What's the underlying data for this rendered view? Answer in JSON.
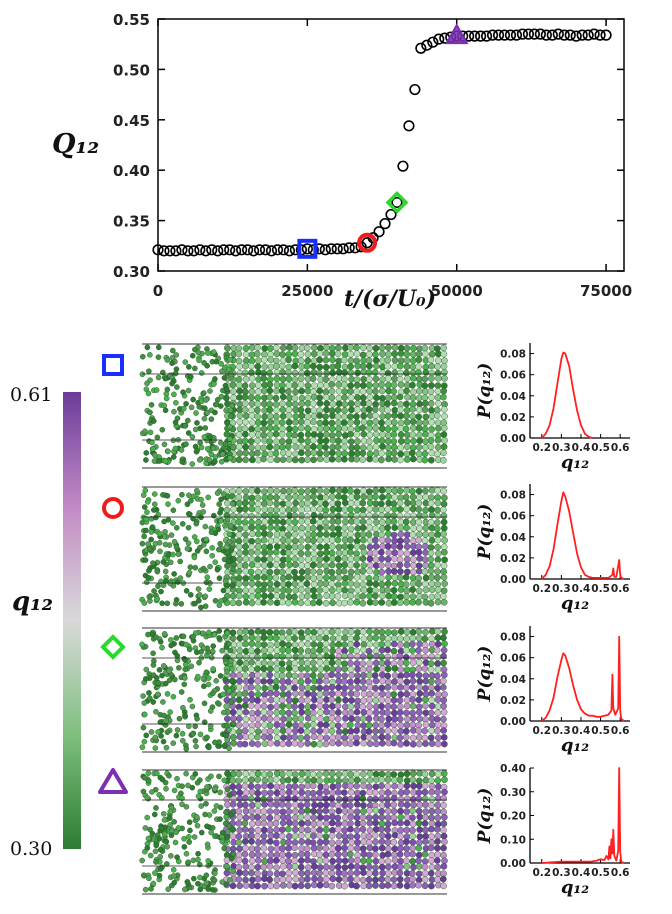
{
  "chart_data": [
    {
      "type": "scatter",
      "xlabel": "t/(σ/U₀)",
      "ylabel": "Q₁₂",
      "xlim": [
        0,
        78000
      ],
      "ylim": [
        0.3,
        0.55
      ],
      "xticks": [
        0,
        25000,
        50000,
        75000
      ],
      "xtick_labels": [
        "0",
        "25000",
        "50000",
        "75000"
      ],
      "yticks": [
        0.3,
        0.35,
        0.4,
        0.45,
        0.5,
        0.55
      ],
      "ytick_labels": [
        "0.30",
        "0.35",
        "0.40",
        "0.45",
        "0.50",
        "0.55"
      ],
      "grid": false,
      "series": [
        {
          "marker": "open-circle",
          "color": "#000000",
          "x": [
            0,
            1000,
            2000,
            3000,
            4000,
            5000,
            6000,
            7000,
            8000,
            9000,
            10000,
            11000,
            12000,
            13000,
            14000,
            15000,
            16000,
            17000,
            18000,
            19000,
            20000,
            21000,
            22000,
            23000,
            24000,
            25000,
            26000,
            27000,
            28000,
            29000,
            30000,
            31000,
            32000,
            33000,
            34000,
            35000,
            36000,
            37000,
            38000,
            39000,
            40000,
            41000,
            42000,
            43000,
            44000,
            45000,
            46000,
            47000,
            48000,
            49000,
            50000,
            51000,
            52000,
            53000,
            54000,
            55000,
            56000,
            57000,
            58000,
            59000,
            60000,
            61000,
            62000,
            63000,
            64000,
            65000,
            66000,
            67000,
            68000,
            69000,
            70000,
            71000,
            72000,
            73000,
            74000,
            75000
          ],
          "y": [
            0.321,
            0.32,
            0.32,
            0.32,
            0.321,
            0.32,
            0.32,
            0.321,
            0.32,
            0.321,
            0.32,
            0.321,
            0.321,
            0.32,
            0.321,
            0.321,
            0.32,
            0.321,
            0.321,
            0.32,
            0.321,
            0.321,
            0.32,
            0.321,
            0.321,
            0.322,
            0.321,
            0.322,
            0.321,
            0.322,
            0.322,
            0.322,
            0.323,
            0.323,
            0.324,
            0.328,
            0.333,
            0.339,
            0.347,
            0.356,
            0.368,
            0.404,
            0.444,
            0.48,
            0.521,
            0.524,
            0.527,
            0.53,
            0.531,
            0.532,
            0.533,
            0.533,
            0.533,
            0.533,
            0.533,
            0.533,
            0.534,
            0.534,
            0.534,
            0.534,
            0.534,
            0.535,
            0.535,
            0.535,
            0.535,
            0.534,
            0.534,
            0.535,
            0.534,
            0.534,
            0.533,
            0.534,
            0.534,
            0.535,
            0.534,
            0.534
          ]
        }
      ],
      "highlight_markers": [
        {
          "shape": "square",
          "x": 25000,
          "y": 0.322,
          "color": "#1a2fff"
        },
        {
          "shape": "circle",
          "x": 35000,
          "y": 0.328,
          "color": "#ee1c1c"
        },
        {
          "shape": "diamond",
          "x": 40000,
          "y": 0.368,
          "color": "#2bd92b"
        },
        {
          "shape": "triangle",
          "x": 50000,
          "y": 0.533,
          "color": "#7b2fb5"
        }
      ]
    },
    {
      "type": "line",
      "marker": "square",
      "xlabel": "q₁₂",
      "ylabel": "P(q₁₂)",
      "xlim": [
        0.14,
        0.65
      ],
      "ylim": [
        0,
        0.09
      ],
      "xticks": [
        0.2,
        0.3,
        0.4,
        0.5,
        0.6
      ],
      "xtick_labels": [
        "0.2",
        "0.3",
        "0.4",
        "0.5",
        "0.6"
      ],
      "yticks": [
        0.0,
        0.02,
        0.04,
        0.06,
        0.08
      ],
      "ytick_labels": [
        "0.00",
        "0.02",
        "0.04",
        "0.06",
        "0.08"
      ],
      "color": "#ff2020",
      "series": [
        {
          "x": [
            0.2,
            0.22,
            0.24,
            0.26,
            0.28,
            0.3,
            0.31,
            0.32,
            0.34,
            0.36,
            0.38,
            0.4,
            0.42,
            0.44,
            0.46
          ],
          "y": [
            0.0,
            0.004,
            0.012,
            0.028,
            0.052,
            0.075,
            0.081,
            0.08,
            0.068,
            0.046,
            0.026,
            0.012,
            0.004,
            0.001,
            0.0
          ]
        }
      ]
    },
    {
      "type": "line",
      "marker": "circle",
      "xlabel": "q₁₂",
      "ylabel": "P(q₁₂)",
      "xlim": [
        0.14,
        0.65
      ],
      "ylim": [
        0,
        0.09
      ],
      "xticks": [
        0.2,
        0.3,
        0.4,
        0.5,
        0.6
      ],
      "xtick_labels": [
        "0.2",
        "0.3",
        "0.4",
        "0.5",
        "0.6"
      ],
      "yticks": [
        0.0,
        0.02,
        0.04,
        0.06,
        0.08
      ],
      "ytick_labels": [
        "0.00",
        "0.02",
        "0.04",
        "0.06",
        "0.08"
      ],
      "color": "#ff2020",
      "series": [
        {
          "x": [
            0.2,
            0.22,
            0.24,
            0.26,
            0.28,
            0.3,
            0.31,
            0.32,
            0.34,
            0.36,
            0.38,
            0.4,
            0.42,
            0.44,
            0.46,
            0.5,
            0.54,
            0.56,
            0.565,
            0.57,
            0.58,
            0.595,
            0.6,
            0.605,
            0.62
          ],
          "y": [
            0.0,
            0.004,
            0.012,
            0.028,
            0.052,
            0.074,
            0.082,
            0.078,
            0.064,
            0.044,
            0.024,
            0.011,
            0.004,
            0.002,
            0.001,
            0.001,
            0.001,
            0.004,
            0.01,
            0.002,
            0.002,
            0.018,
            0.004,
            0.001,
            0.0
          ]
        }
      ]
    },
    {
      "type": "line",
      "marker": "diamond",
      "xlabel": "q₁₂",
      "ylabel": "P(q₁₂)",
      "xlim": [
        0.14,
        0.65
      ],
      "ylim": [
        0,
        0.09
      ],
      "xticks": [
        0.2,
        0.3,
        0.4,
        0.5,
        0.6
      ],
      "xtick_labels": [
        "0.2",
        "0.3",
        "0.4",
        "0.5",
        "0.6"
      ],
      "yticks": [
        0.0,
        0.02,
        0.04,
        0.06,
        0.08
      ],
      "ytick_labels": [
        "0.00",
        "0.02",
        "0.04",
        "0.06",
        "0.08"
      ],
      "color": "#ff2020",
      "series": [
        {
          "x": [
            0.2,
            0.22,
            0.24,
            0.26,
            0.28,
            0.3,
            0.31,
            0.32,
            0.34,
            0.36,
            0.38,
            0.4,
            0.42,
            0.44,
            0.46,
            0.48,
            0.5,
            0.52,
            0.54,
            0.555,
            0.56,
            0.565,
            0.575,
            0.59,
            0.595,
            0.6,
            0.605,
            0.62
          ],
          "y": [
            0.0,
            0.003,
            0.01,
            0.022,
            0.042,
            0.058,
            0.064,
            0.062,
            0.05,
            0.034,
            0.02,
            0.011,
            0.007,
            0.005,
            0.005,
            0.004,
            0.004,
            0.005,
            0.006,
            0.01,
            0.044,
            0.012,
            0.006,
            0.012,
            0.08,
            0.01,
            0.002,
            0.0
          ]
        }
      ]
    },
    {
      "type": "line",
      "marker": "triangle",
      "xlabel": "q₁₂",
      "ylabel": "P(q₁₂)",
      "xlim": [
        0.14,
        0.65
      ],
      "ylim": [
        0,
        0.4
      ],
      "xticks": [
        0.2,
        0.3,
        0.4,
        0.5,
        0.6
      ],
      "xtick_labels": [
        "0.2",
        "0.3",
        "0.4",
        "0.5",
        "0.6"
      ],
      "yticks": [
        0.0,
        0.1,
        0.2,
        0.3,
        0.4
      ],
      "ytick_labels": [
        "0.00",
        "0.10",
        "0.20",
        "0.30",
        "0.40"
      ],
      "color": "#ff2020",
      "series": [
        {
          "x": [
            0.2,
            0.25,
            0.3,
            0.35,
            0.4,
            0.45,
            0.48,
            0.5,
            0.52,
            0.53,
            0.54,
            0.545,
            0.55,
            0.555,
            0.56,
            0.565,
            0.57,
            0.58,
            0.59,
            0.595,
            0.6,
            0.605,
            0.62
          ],
          "y": [
            0.0,
            0.003,
            0.006,
            0.006,
            0.006,
            0.006,
            0.01,
            0.016,
            0.012,
            0.03,
            0.015,
            0.07,
            0.02,
            0.1,
            0.04,
            0.14,
            0.03,
            0.01,
            0.05,
            0.4,
            0.05,
            0.005,
            0.0
          ]
        }
      ]
    }
  ],
  "colorbar": {
    "label": "q₁₂",
    "max_label": "0.61",
    "min_label": "0.30",
    "stops": [
      "#6a3d9a",
      "#c28ac4",
      "#d9d9d9",
      "#7fbf7f",
      "#2e7d32"
    ]
  },
  "snapshots": [
    {
      "marker": "square",
      "crystal_fraction": 0.0
    },
    {
      "marker": "circle",
      "crystal_fraction": 0.08
    },
    {
      "marker": "diamond",
      "crystal_fraction": 0.45
    },
    {
      "marker": "triangle",
      "crystal_fraction": 0.9
    }
  ]
}
